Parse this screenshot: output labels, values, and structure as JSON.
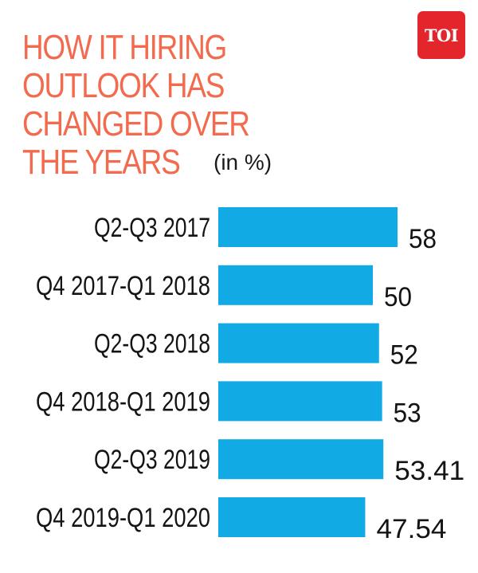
{
  "logo": {
    "text": "TOI"
  },
  "colors": {
    "title": "#f26b4f",
    "bar": "#12aae4",
    "logo_bg": "#e3262b"
  },
  "chart_data": {
    "type": "bar",
    "orientation": "horizontal",
    "title_lines": [
      "HOW IT HIRING",
      "OUTLOOK HAS",
      "CHANGED OVER",
      "THE YEARS"
    ],
    "unit": "(in %)",
    "categories": [
      "Q2-Q3 2017",
      "Q4 2017-Q1 2018",
      "Q2-Q3 2018",
      "Q4 2018-Q1 2019",
      "Q2-Q3 2019",
      "Q4 2019-Q1 2020"
    ],
    "values": [
      58,
      50,
      52,
      53,
      53.41,
      47.54
    ],
    "value_labels": [
      "58",
      "50",
      "52",
      "53",
      "53.41",
      "47.54"
    ],
    "grid": false,
    "legend": "none"
  }
}
